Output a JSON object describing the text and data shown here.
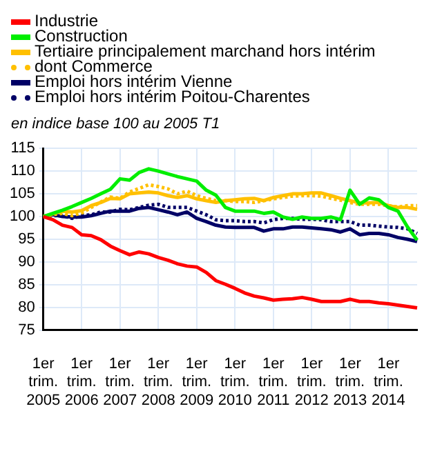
{
  "chart_data": {
    "type": "line",
    "subtitle": "en indice base 100 au 2005 T1",
    "categories": [
      "1er trim. 2005",
      null,
      null,
      null,
      "1er trim. 2006",
      null,
      null,
      null,
      "1er trim. 2007",
      null,
      null,
      null,
      "1er trim. 2008",
      null,
      null,
      null,
      "1er trim. 2009",
      null,
      null,
      null,
      "1er trim. 2010",
      null,
      null,
      null,
      "1er trim. 2011",
      null,
      null,
      null,
      "1er trim. 2012",
      null,
      null,
      null,
      "1er trim. 2013",
      null,
      null,
      null,
      "1er trim. 2014",
      null,
      null,
      null
    ],
    "series": [
      {
        "name": "Industrie",
        "color": "#ff0000",
        "values": [
          100,
          99.3,
          98.1,
          97.6,
          96,
          95.8,
          94.9,
          93.5,
          92.5,
          91.6,
          92.2,
          91.8,
          91,
          90.4,
          89.6,
          89.1,
          88.9,
          87.7,
          85.9,
          85.1,
          84.2,
          83.2,
          82.5,
          82.1,
          81.6,
          81.8,
          81.9,
          82.2,
          81.8,
          81.3,
          81.3,
          81.3,
          81.8,
          81.3,
          81.3,
          81,
          80.8,
          80.5,
          80.2,
          79.9
        ]
      },
      {
        "name": "Construction",
        "color": "#00ee00",
        "values": [
          100,
          100.7,
          101.4,
          102.2,
          103.1,
          104,
          105,
          106,
          108.3,
          108,
          109.7,
          110.5,
          110,
          109.4,
          108.8,
          108.3,
          107.8,
          105.8,
          104.7,
          102,
          101.2,
          101.2,
          101.2,
          100.7,
          101,
          99.9,
          99.4,
          99.9,
          99.6,
          99.6,
          99.9,
          99.3,
          105.8,
          102.7,
          104.1,
          103.7,
          102,
          101.2,
          97.7,
          94.8
        ]
      },
      {
        "name": "Tertiaire principalement marchand hors intérim",
        "color": "#ffc000",
        "values": [
          100,
          100.6,
          101.2,
          101,
          101.3,
          102.4,
          103.1,
          104,
          103.9,
          105,
          105.2,
          105.4,
          105.2,
          104.6,
          104.2,
          104.6,
          103.9,
          103.5,
          103.1,
          103.5,
          103.7,
          103.9,
          104,
          103.5,
          104.2,
          104.6,
          105,
          105,
          105.2,
          105.2,
          104.6,
          104,
          103.5,
          103,
          103,
          103.1,
          102.4,
          102,
          102,
          101.6
        ]
      },
      {
        "name": "dont Commerce",
        "color": "#ffc000",
        "line_style": "dotted",
        "values": [
          100,
          100.4,
          100.7,
          100.2,
          100.8,
          102,
          103.2,
          104.3,
          104,
          105.4,
          106.2,
          107,
          106.6,
          106.1,
          105,
          105.6,
          104.6,
          104,
          103.5,
          103.5,
          103.3,
          103.3,
          103.1,
          103.5,
          103.9,
          104.2,
          104.5,
          104.6,
          104.6,
          104.5,
          104,
          103.6,
          103.1,
          102.7,
          102.7,
          102.7,
          102.4,
          102.1,
          102.4,
          102.4
        ]
      },
      {
        "name": "Emploi hors intérim Vienne",
        "color": "#000066",
        "values": [
          100,
          100.4,
          100,
          99.9,
          99.9,
          100.2,
          100.7,
          101.2,
          101.2,
          101.2,
          101.8,
          102,
          101.5,
          101,
          100.4,
          101,
          99.6,
          98.9,
          98.1,
          97.7,
          97.6,
          97.6,
          97.6,
          96.8,
          97.3,
          97.3,
          97.7,
          97.7,
          97.5,
          97.3,
          97.1,
          96.6,
          97.3,
          96,
          96.3,
          96.3,
          96,
          95.4,
          95,
          94.5
        ]
      },
      {
        "name": "Emploi hors intérim Poitou-Charentes",
        "color": "#000066",
        "line_style": "dotted",
        "values": [
          100,
          100.2,
          100.2,
          99.6,
          100.2,
          100.4,
          101,
          101,
          101.6,
          101.5,
          102,
          102.5,
          102.7,
          102,
          102,
          102,
          101.2,
          100.4,
          99.3,
          99.1,
          99.1,
          98.9,
          98.9,
          98.6,
          99.3,
          99.6,
          99.6,
          99.4,
          99.4,
          99.3,
          98.9,
          98.9,
          98.9,
          98.1,
          98.1,
          97.9,
          97.7,
          97.6,
          97.3,
          96.3
        ]
      }
    ],
    "ylim": [
      75,
      115
    ],
    "yticks": [
      75,
      80,
      85,
      90,
      95,
      100,
      105,
      110,
      115
    ],
    "grid": true,
    "legend": "top left",
    "marker": "none"
  }
}
